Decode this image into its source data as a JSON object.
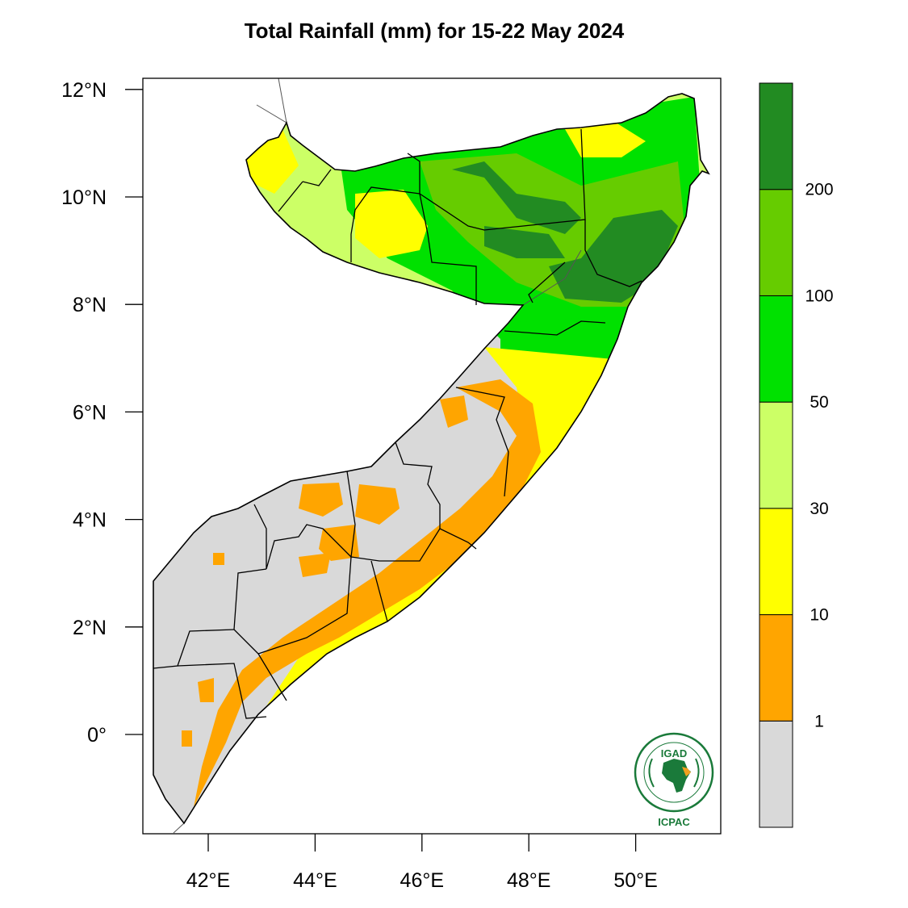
{
  "title": "Total Rainfall (mm) for 15-22 May 2024",
  "lat_ticks": [
    {
      "value": 12,
      "label": "12°N"
    },
    {
      "value": 10,
      "label": "10°N"
    },
    {
      "value": 8,
      "label": "8°N"
    },
    {
      "value": 6,
      "label": "6°N"
    },
    {
      "value": 4,
      "label": "4°N"
    },
    {
      "value": 2,
      "label": "2°N"
    },
    {
      "value": 0,
      "label": "0°"
    }
  ],
  "lon_ticks": [
    {
      "value": 42,
      "label": "42°E"
    },
    {
      "value": 44,
      "label": "44°E"
    },
    {
      "value": 46,
      "label": "46°E"
    },
    {
      "value": 48,
      "label": "48°E"
    },
    {
      "value": 50,
      "label": "50°E"
    }
  ],
  "legend": {
    "bins": [
      {
        "color": "#d9d9d9"
      },
      {
        "color": "#ffa500"
      },
      {
        "color": "#ffff00"
      },
      {
        "color": "#ccff66"
      },
      {
        "color": "#00e100"
      },
      {
        "color": "#66cc00"
      },
      {
        "color": "#228b22"
      }
    ],
    "labels": [
      "1",
      "10",
      "30",
      "50",
      "100",
      "200"
    ]
  },
  "logo": {
    "top_text": "IGAD",
    "bottom_text": "ICPAC",
    "accent_color": "#1a7a3a"
  },
  "colors": {
    "background": "#ffffff",
    "border": "#000000",
    "admin_lines": "#000000"
  }
}
